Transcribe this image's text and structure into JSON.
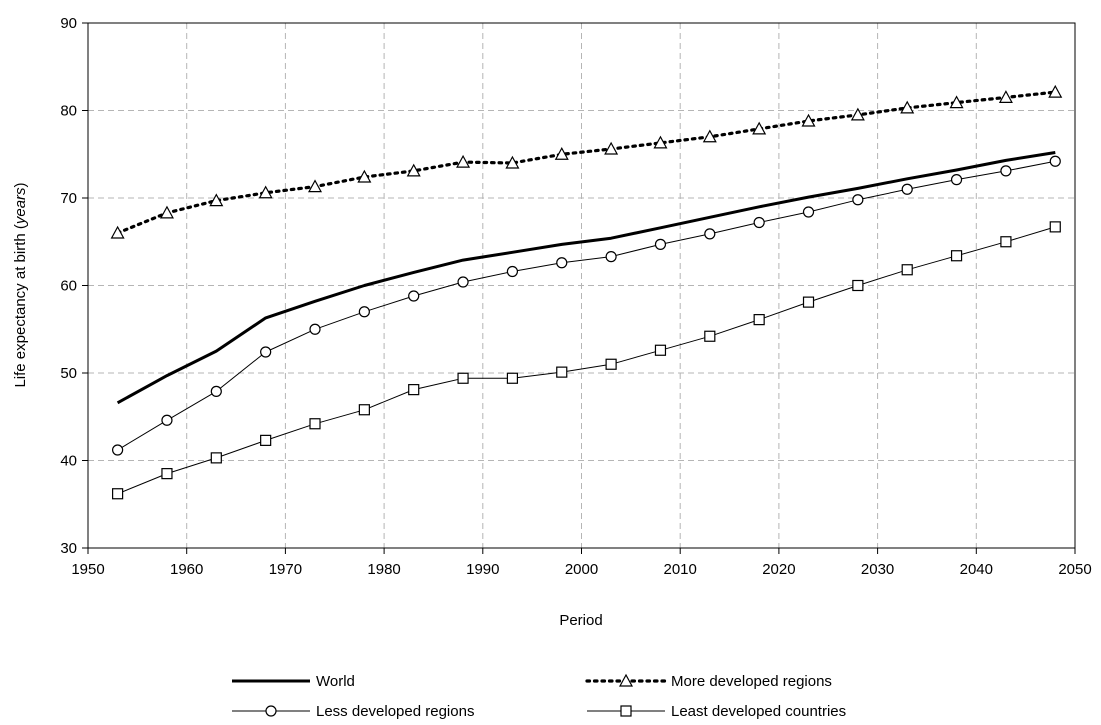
{
  "chart_data": {
    "type": "line",
    "xlabel": "Period",
    "ylabel_main": "Life expectancy at birth (",
    "ylabel_unit": "years",
    "ylabel_close": ")",
    "xlim": [
      1950,
      2050
    ],
    "ylim": [
      30,
      90
    ],
    "x_ticks": [
      1950,
      1960,
      1970,
      1980,
      1990,
      2000,
      2010,
      2020,
      2030,
      2040,
      2050
    ],
    "y_ticks": [
      30,
      40,
      50,
      60,
      70,
      80,
      90
    ],
    "grid": true,
    "legend_position": "bottom",
    "x": [
      1953,
      1958,
      1963,
      1968,
      1973,
      1978,
      1983,
      1988,
      1993,
      1998,
      2003,
      2008,
      2013,
      2018,
      2023,
      2028,
      2033,
      2038,
      2043,
      2048
    ],
    "series": [
      {
        "name": "World",
        "style": "solid-thick",
        "marker": "none",
        "values": [
          46.6,
          49.7,
          52.5,
          56.3,
          58.2,
          60.0,
          61.5,
          62.9,
          63.8,
          64.7,
          65.4,
          66.6,
          67.8,
          69.0,
          70.1,
          71.1,
          72.2,
          73.2,
          74.3,
          75.2
        ]
      },
      {
        "name": "More developed regions",
        "style": "dotted",
        "marker": "triangle",
        "values": [
          66.0,
          68.3,
          69.7,
          70.6,
          71.3,
          72.4,
          73.1,
          74.1,
          74.0,
          75.0,
          75.6,
          76.3,
          77.0,
          77.9,
          78.8,
          79.5,
          80.3,
          80.9,
          81.5,
          82.1
        ]
      },
      {
        "name": "Less developed regions",
        "style": "solid-thin",
        "marker": "circle",
        "values": [
          41.2,
          44.6,
          47.9,
          52.4,
          55.0,
          57.0,
          58.8,
          60.4,
          61.6,
          62.6,
          63.3,
          64.7,
          65.9,
          67.2,
          68.4,
          69.8,
          71.0,
          72.1,
          73.1,
          74.2
        ]
      },
      {
        "name": "Least developed countries",
        "style": "solid-thin",
        "marker": "square",
        "values": [
          36.2,
          38.5,
          40.3,
          42.3,
          44.2,
          45.8,
          48.1,
          49.4,
          49.4,
          50.1,
          51.0,
          52.6,
          54.2,
          56.1,
          58.1,
          60.0,
          61.8,
          63.4,
          65.0,
          66.7
        ]
      }
    ]
  },
  "colors": {
    "line": "#000000",
    "grid": "#b5b5b5",
    "background": "#ffffff"
  }
}
